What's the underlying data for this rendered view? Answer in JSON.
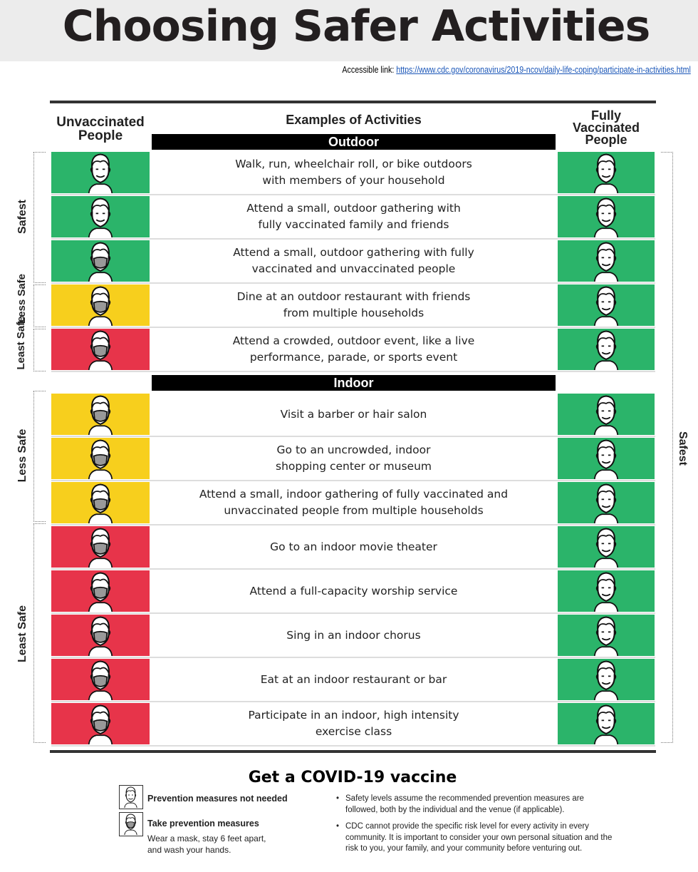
{
  "title": "Choosing Safer Activities",
  "accessible_label": "Accessible link:",
  "accessible_url": "https://www.cdc.gov/coronavirus/2019-ncov/daily-life-coping/participate-in-activities.html",
  "headers": {
    "unvaccinated": "Unvaccinated People",
    "activities": "Examples of Activities",
    "vaccinated": "Fully Vaccinated People"
  },
  "colors": {
    "safest": "#2bb46a",
    "less_safe": "#f7cf1d",
    "least_safe": "#e7344a"
  },
  "sections": [
    {
      "label": "Outdoor",
      "activities": [
        {
          "text": "Walk, run, wheelchair roll, or bike outdoors\nwith members of your household",
          "unvaccinated": "safest",
          "mask": false
        },
        {
          "text": "Attend a small, outdoor gathering with\nfully vaccinated family and friends",
          "unvaccinated": "safest",
          "mask": false
        },
        {
          "text": "Attend a small, outdoor gathering with fully\nvaccinated and unvaccinated people",
          "unvaccinated": "safest",
          "mask": true
        },
        {
          "text": "Dine at an outdoor restaurant with friends\nfrom multiple households",
          "unvaccinated": "less_safe",
          "mask": true
        },
        {
          "text": "Attend a crowded, outdoor event, like a live\nperformance, parade, or sports event",
          "unvaccinated": "least_safe",
          "mask": true
        }
      ]
    },
    {
      "label": "Indoor",
      "activities": [
        {
          "text": "Visit a barber or hair salon",
          "unvaccinated": "less_safe",
          "mask": true
        },
        {
          "text": "Go to an uncrowded, indoor\nshopping center or museum",
          "unvaccinated": "less_safe",
          "mask": true
        },
        {
          "text": "Attend a small, indoor gathering of fully vaccinated and\nunvaccinated people from multiple households",
          "unvaccinated": "less_safe",
          "mask": true
        },
        {
          "text": "Go to an indoor movie theater",
          "unvaccinated": "least_safe",
          "mask": true
        },
        {
          "text": "Attend a full-capacity worship service",
          "unvaccinated": "least_safe",
          "mask": true
        },
        {
          "text": "Sing in an indoor chorus",
          "unvaccinated": "least_safe",
          "mask": true
        },
        {
          "text": "Eat at an indoor restaurant or bar",
          "unvaccinated": "least_safe",
          "mask": true
        },
        {
          "text": "Participate in an indoor, high intensity\nexercise class",
          "unvaccinated": "least_safe",
          "mask": true
        }
      ]
    }
  ],
  "side_labels": {
    "safest": "Safest",
    "less_safe": "Less Safe",
    "least_safe": "Least Safe",
    "right": "Safest"
  },
  "footer": {
    "title": "Get a COVID-19 vaccine",
    "legend": [
      {
        "icon": "face-icon",
        "title": "Prevention measures not needed"
      },
      {
        "icon": "masked-face-icon",
        "title": "Take prevention measures",
        "subtitle": "Wear a mask, stay 6 feet apart,\nand wash your hands."
      }
    ],
    "notes": [
      "Safety levels assume the recommended prevention measures are followed, both by the individual and the venue (if applicable).",
      "CDC cannot provide the specific risk level for every activity in every community. It is important to consider your own personal situation and the risk to you, your family, and your community before venturing out."
    ]
  }
}
